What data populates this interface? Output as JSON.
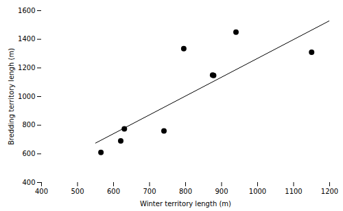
{
  "chart_data": {
    "type": "scatter",
    "xlabel": "Winter territory length (m)",
    "ylabel": "Bredding territory lengh (m)",
    "series": [
      {
        "type": "scatter",
        "color": "#000000",
        "x": [
          565,
          620,
          630,
          740,
          795,
          875,
          878,
          940,
          1150
        ],
        "values": [
          610,
          690,
          775,
          760,
          1335,
          1150,
          1148,
          1450,
          1310
        ]
      },
      {
        "type": "line",
        "color": "#000000",
        "x": [
          550,
          1200
        ],
        "values": [
          675,
          1530
        ]
      }
    ],
    "xlim": [
      400,
      1200
    ],
    "ylim": [
      400,
      1600
    ],
    "xticks": [
      400,
      500,
      600,
      700,
      800,
      900,
      1000,
      1100,
      1200
    ],
    "yticks": [
      400,
      600,
      800,
      1000,
      1200,
      1400,
      1600
    ]
  }
}
